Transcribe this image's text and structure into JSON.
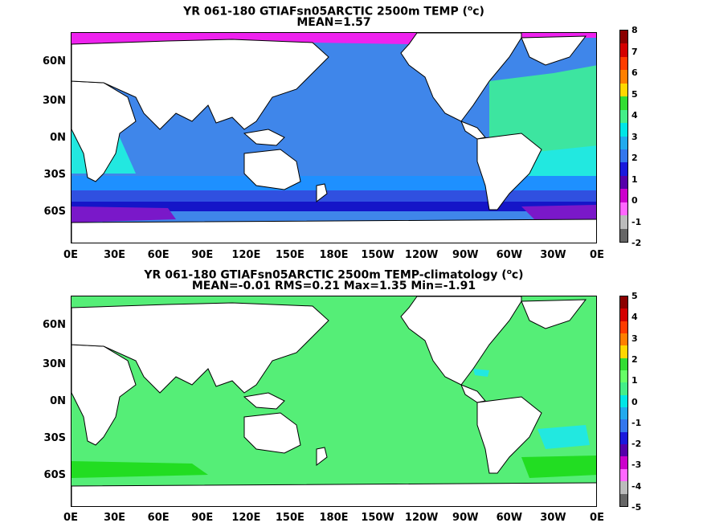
{
  "panels": [
    {
      "title1_pre": "YR 061-180 GTIAFsn05ARCTIC 2500m TEMP (",
      "title1_sup": "o",
      "title1_post": "c)",
      "title2": "MEAN=1.57",
      "colorbar_labels": [
        "8",
        "7",
        "6",
        "5",
        "4",
        "3",
        "2",
        "1",
        "0",
        "-1",
        "-2"
      ],
      "colorbar_colors": [
        "#8b0000",
        "#d40000",
        "#ff3c00",
        "#ff7f00",
        "#ffd700",
        "#33dd33",
        "#44ee88",
        "#00e6e6",
        "#22aaee",
        "#3377ee",
        "#1a1adc",
        "#5500aa",
        "#cc00cc",
        "#ff66ff",
        "#bbbbbb",
        "#666666"
      ]
    },
    {
      "title1_pre": "YR 061-180 GTIAFsn05ARCTIC 2500m TEMP-climatology (",
      "title1_sup": "o",
      "title1_post": "c)",
      "title2": "MEAN=-0.01   RMS=0.21   Max=1.35   Min=-1.91",
      "colorbar_labels": [
        "5",
        "4",
        "3",
        "2",
        "1",
        "0",
        "-1",
        "-2",
        "-3",
        "-4",
        "-5"
      ],
      "colorbar_colors": [
        "#8b0000",
        "#d40000",
        "#ff3c00",
        "#ff7f00",
        "#ffd700",
        "#33dd33",
        "#66ff66",
        "#44ee88",
        "#00e6e6",
        "#22aaee",
        "#3377ee",
        "#1a1adc",
        "#5500aa",
        "#cc00cc",
        "#ff66ff",
        "#bbbbbb",
        "#666666"
      ]
    }
  ],
  "lat_labels": [
    "60N",
    "30N",
    "0N",
    "30S",
    "60S"
  ],
  "lon_labels": [
    "0E",
    "30E",
    "60E",
    "90E",
    "120E",
    "150E",
    "180E",
    "150W",
    "120W",
    "90W",
    "60W",
    "30W",
    "0E"
  ],
  "colors": {
    "top_ocean": "#3f86ea",
    "top_south1": "#1e90ff",
    "top_south2": "#3050e0",
    "top_south3": "#1515c8",
    "top_deep": "#7a18c9",
    "top_atlantic": "#3de5a0",
    "top_cyan": "#22e8e0",
    "top_magenta": "#ee22ee",
    "bot_ocean": "#55ee77",
    "bot_bright": "#22dd22",
    "bot_cyan": "#22e8e0",
    "land": "#ffffff",
    "coast": "#000000"
  }
}
